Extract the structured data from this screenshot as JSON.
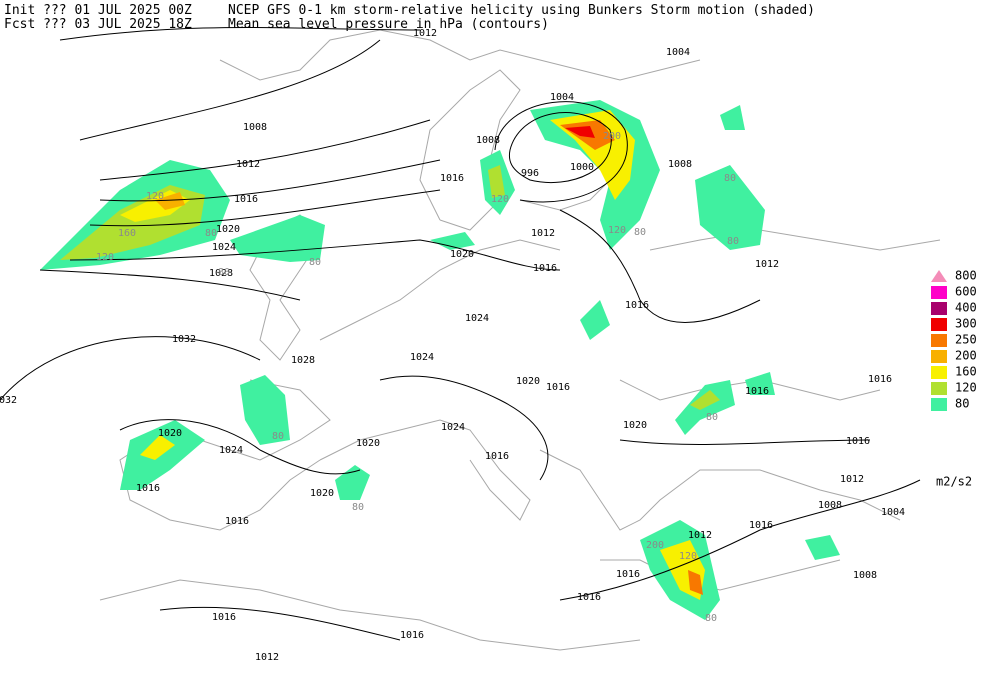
{
  "header": {
    "init": "Init  ??? 01 JUL 2025 00Z",
    "fcst": "Fcst ??? 03 JUL 2025 18Z",
    "title": "NCEP GFS 0-1 km storm-relative helicity using Bunkers Storm motion (shaded)",
    "subtitle": "Mean sea level pressure in hPa (contours)"
  },
  "contour_labels": [
    "1012",
    "1004",
    "1008",
    "1004",
    "1008",
    "1012",
    "1008",
    "1000",
    "996",
    "1016",
    "1016",
    "1020",
    "1012",
    "1024",
    "1020",
    "1016",
    "1028",
    "1012",
    "1016",
    "1024",
    "1032",
    "1028",
    "1024",
    "1020",
    "1016",
    "1016",
    "032",
    "1016",
    "1024",
    "1020",
    "1020",
    "1024",
    "1020",
    "1016",
    "1016",
    "1012",
    "1016",
    "1020",
    "1008",
    "1004",
    "1016",
    "1016",
    "1012",
    "1016",
    "1016",
    "1008",
    "1016",
    "1016",
    "1012"
  ],
  "shading_labels": [
    "120",
    "160",
    "120",
    "80",
    "80",
    "80",
    "200",
    "80",
    "80",
    "120",
    "80",
    "120",
    "80",
    "80",
    "80",
    "80",
    "200",
    "120"
  ],
  "legend": {
    "levels": [
      800,
      600,
      400,
      300,
      250,
      200,
      160,
      120,
      80
    ],
    "colors": [
      "#f48cb8",
      "#ff00c8",
      "#a8006c",
      "#f00000",
      "#f87800",
      "#f8b000",
      "#f8f000",
      "#b0e030",
      "#40f0a0"
    ],
    "unit": "m2/s2"
  }
}
